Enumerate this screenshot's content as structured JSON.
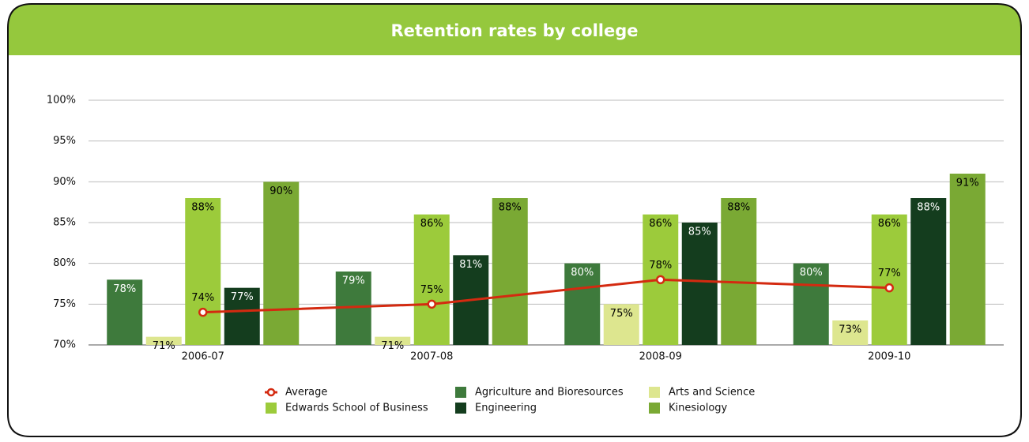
{
  "chart_data": {
    "type": "bar",
    "title": "Retention rates by college",
    "categories": [
      "2006-07",
      "2007-08",
      "2008-09",
      "2009-10"
    ],
    "series": [
      {
        "name": "Average",
        "type": "line",
        "color": "#d42a10",
        "values": [
          74,
          75,
          78,
          77
        ],
        "value_labels": [
          "74%",
          "75%",
          "78%",
          "77%"
        ],
        "label_color": "#000000"
      },
      {
        "name": "Agriculture and Bioresources",
        "type": "bar",
        "color": "#3e7a3c",
        "values": [
          78,
          79,
          80,
          80
        ],
        "value_labels": [
          "78%",
          "79%",
          "80%",
          "80%"
        ],
        "label_color": "#ffffff"
      },
      {
        "name": "Arts and Science",
        "type": "bar",
        "color": "#dde68f",
        "values": [
          71,
          71,
          75,
          73
        ],
        "value_labels": [
          "71%",
          "71%",
          "75%",
          "73%"
        ],
        "label_color": "#000000"
      },
      {
        "name": "Edwards School of Business",
        "type": "bar",
        "color": "#9ccb3b",
        "values": [
          88,
          86,
          86,
          86
        ],
        "value_labels": [
          "88%",
          "86%",
          "86%",
          "86%"
        ],
        "label_color": "#000000"
      },
      {
        "name": "Engineering",
        "type": "bar",
        "color": "#143d1e",
        "values": [
          77,
          81,
          85,
          88
        ],
        "value_labels": [
          "77%",
          "81%",
          "85%",
          "88%"
        ],
        "label_color": "#ffffff"
      },
      {
        "name": "Kinesiology",
        "type": "bar",
        "color": "#7aa934",
        "values": [
          90,
          88,
          88,
          91
        ],
        "value_labels": [
          "90%",
          "88%",
          "88%",
          "91%"
        ],
        "label_color": "#000000"
      }
    ],
    "ylim": [
      70,
      100
    ],
    "yticks": [
      {
        "value": 70,
        "label": "70%"
      },
      {
        "value": 75,
        "label": "75%"
      },
      {
        "value": 80,
        "label": "80%"
      },
      {
        "value": 85,
        "label": "85%"
      },
      {
        "value": 90,
        "label": "90%"
      },
      {
        "value": 95,
        "label": "95%"
      },
      {
        "value": 100,
        "label": "100%"
      }
    ],
    "grid": true,
    "legend": "bottom"
  }
}
